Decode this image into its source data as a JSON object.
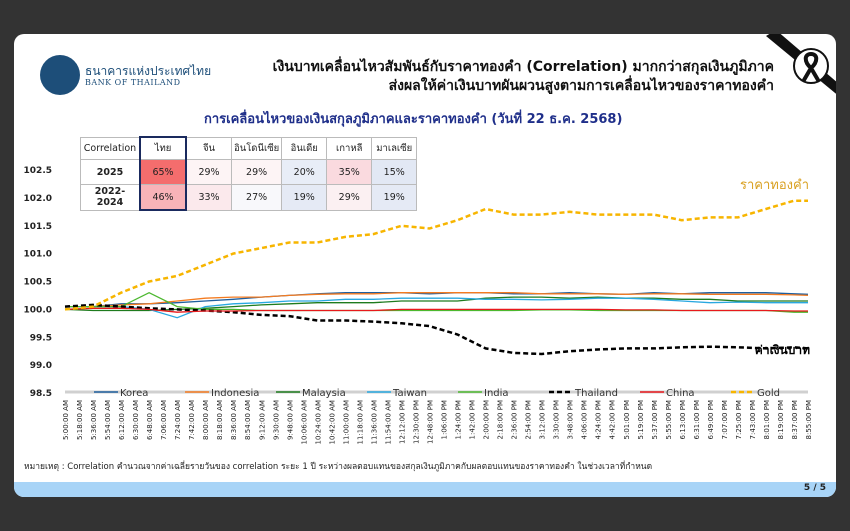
{
  "header": {
    "logo_th": "ธนาคารแห่งประเทศไทย",
    "logo_en": "BANK OF THAILAND",
    "title_line1": "เงินบาทเคลื่อนไหวสัมพันธ์กับราคาทองคำ (Correlation) มากกว่าสกุลเงินภูมิภาค",
    "title_line2": "ส่งผลให้ค่าเงินบาทผันผวนสูงตามการเคลื่อนไหวของราคาทองคำ",
    "mourning_icon": "black-ribbon"
  },
  "table": {
    "headers": [
      "Correlation",
      "ไทย",
      "จีน",
      "อินโดนีเซีย",
      "อินเดีย",
      "เกาหลี",
      "มาเลเซีย"
    ],
    "rows": [
      {
        "label": "2025",
        "values": [
          "65%",
          "29%",
          "29%",
          "20%",
          "35%",
          "15%"
        ],
        "colors": [
          "#f46d6d",
          "#fdf4f5",
          "#fdf4f5",
          "#e8edf7",
          "#fadadf",
          "#e2e8f4"
        ]
      },
      {
        "label": "2022-2024",
        "values": [
          "46%",
          "33%",
          "27%",
          "19%",
          "29%",
          "19%"
        ],
        "colors": [
          "#f8b3b8",
          "#fbe9ec",
          "#f8f8fb",
          "#e5eaf5",
          "#fbf0f2",
          "#e5eaf5"
        ]
      }
    ]
  },
  "chart_data": {
    "type": "line",
    "title": "การเคลื่อนไหวของเงินสกุลภูมิภาคและราคาทองคำ (วันที่ 22 ธ.ค. 2568)",
    "ylim": [
      98.5,
      102.5
    ],
    "yticks": [
      "98.5",
      "99.0",
      "99.5",
      "100.0",
      "100.5",
      "101.0",
      "101.5",
      "102.0",
      "102.5"
    ],
    "xtick_labels": [
      "5:00:00 AM",
      "5:18:00 AM",
      "5:36:00 AM",
      "5:54:00 AM",
      "6:12:00 AM",
      "6:30:00 AM",
      "6:48:00 AM",
      "7:06:00 AM",
      "7:24:00 AM",
      "7:42:00 AM",
      "8:00:00 AM",
      "8:18:00 AM",
      "8:36:00 AM",
      "8:54:00 AM",
      "9:12:00 AM",
      "9:30:00 AM",
      "9:48:00 AM",
      "10:06:00 AM",
      "10:24:00 AM",
      "10:42:00 AM",
      "11:00:00 AM",
      "11:18:00 AM",
      "11:36:00 AM",
      "11:54:00 AM",
      "12:12:00 PM",
      "12:30:00 PM",
      "12:48:00 PM",
      "1:06:00 PM",
      "1:24:00 PM",
      "1:42:00 PM",
      "2:00:00 PM",
      "2:18:00 PM",
      "2:36:00 PM",
      "2:54:00 PM",
      "3:12:00 PM",
      "3:30:00 PM",
      "3:48:00 PM",
      "4:06:00 PM",
      "4:24:00 PM",
      "4:42:00 PM",
      "5:01:00 PM",
      "5:19:00 PM",
      "5:37:00 PM",
      "5:55:00 PM",
      "6:13:00 PM",
      "6:31:00 PM",
      "6:49:00 PM",
      "7:07:00 PM",
      "7:25:00 PM",
      "7:43:00 PM",
      "8:01:00 PM",
      "8:19:00 PM",
      "8:37:00 PM",
      "8:55:00 PM"
    ],
    "x": [
      "5:00:00 AM",
      "5:36:00 AM",
      "6:12:00 AM",
      "6:48:00 AM",
      "7:24:00 AM",
      "8:00:00 AM",
      "8:36:00 AM",
      "9:12:00 AM",
      "9:48:00 AM",
      "10:24:00 AM",
      "11:00:00 AM",
      "11:36:00 AM",
      "12:12:00 PM",
      "12:48:00 PM",
      "1:24:00 PM",
      "2:00:00 PM",
      "2:36:00 PM",
      "3:12:00 PM",
      "3:48:00 PM",
      "4:24:00 PM",
      "5:01:00 PM",
      "5:37:00 PM",
      "6:13:00 PM",
      "6:49:00 PM",
      "7:25:00 PM",
      "8:01:00 PM",
      "8:37:00 PM",
      "8:55:00 PM"
    ],
    "legend_position": "bottom",
    "grid": false,
    "series": [
      {
        "name": "Korea",
        "color": "#1f5f9e",
        "dash": false,
        "values": [
          100.05,
          100.05,
          100.1,
          100.1,
          100.12,
          100.15,
          100.18,
          100.22,
          100.25,
          100.28,
          100.3,
          100.3,
          100.3,
          100.28,
          100.3,
          100.3,
          100.28,
          100.28,
          100.3,
          100.28,
          100.27,
          100.3,
          100.28,
          100.3,
          100.3,
          100.3,
          100.28,
          100.27
        ]
      },
      {
        "name": "Indonesia",
        "color": "#f47b20",
        "dash": false,
        "values": [
          100.05,
          100.05,
          100.08,
          100.1,
          100.15,
          100.2,
          100.22,
          100.22,
          100.25,
          100.27,
          100.28,
          100.28,
          100.3,
          100.3,
          100.3,
          100.3,
          100.3,
          100.28,
          100.28,
          100.28,
          100.27,
          100.28,
          100.28,
          100.27,
          100.27,
          100.27,
          100.26,
          100.25
        ]
      },
      {
        "name": "Malaysia",
        "color": "#1e7b1e",
        "dash": false,
        "values": [
          100.0,
          99.98,
          99.98,
          99.98,
          100.0,
          100.02,
          100.05,
          100.08,
          100.1,
          100.12,
          100.12,
          100.12,
          100.15,
          100.15,
          100.15,
          100.2,
          100.22,
          100.22,
          100.2,
          100.22,
          100.2,
          100.2,
          100.18,
          100.18,
          100.15,
          100.15,
          100.15,
          100.15
        ]
      },
      {
        "name": "Taiwan",
        "color": "#29a8e0",
        "dash": false,
        "values": [
          100.05,
          100.05,
          100.05,
          100.0,
          99.85,
          100.05,
          100.1,
          100.12,
          100.15,
          100.15,
          100.18,
          100.18,
          100.2,
          100.2,
          100.2,
          100.18,
          100.18,
          100.17,
          100.18,
          100.2,
          100.2,
          100.18,
          100.15,
          100.12,
          100.13,
          100.12,
          100.12,
          100.12
        ]
      },
      {
        "name": "India",
        "color": "#4cb82f",
        "dash": false,
        "values": [
          100.05,
          100.05,
          100.05,
          100.3,
          100.05,
          100.0,
          100.0,
          99.98,
          99.98,
          99.98,
          99.98,
          99.98,
          99.98,
          99.98,
          99.98,
          99.98,
          99.98,
          99.99,
          99.99,
          99.98,
          99.98,
          99.98,
          99.98,
          99.98,
          99.98,
          99.98,
          99.95,
          99.95
        ]
      },
      {
        "name": "Thailand",
        "color": "#000000",
        "dash": true,
        "values": [
          100.05,
          100.08,
          100.05,
          100.02,
          100.0,
          99.98,
          99.95,
          99.9,
          99.88,
          99.8,
          99.8,
          99.78,
          99.75,
          99.7,
          99.55,
          99.3,
          99.22,
          99.2,
          99.25,
          99.28,
          99.3,
          99.3,
          99.32,
          99.33,
          99.32,
          99.3,
          99.32,
          99.3
        ]
      },
      {
        "name": "China",
        "color": "#e8191c",
        "dash": false,
        "values": [
          100.0,
          100.02,
          100.02,
          100.0,
          99.95,
          99.97,
          99.97,
          99.98,
          99.98,
          99.98,
          99.98,
          99.98,
          100.0,
          100.0,
          100.0,
          100.0,
          100.0,
          100.0,
          100.0,
          100.0,
          99.99,
          99.99,
          99.98,
          99.98,
          99.98,
          99.98,
          99.97,
          99.97
        ]
      },
      {
        "name": "Gold",
        "color": "#f7b500",
        "dash": true,
        "values": [
          100.0,
          100.05,
          100.3,
          100.5,
          100.6,
          100.8,
          101.0,
          101.1,
          101.2,
          101.2,
          101.3,
          101.35,
          101.5,
          101.45,
          101.6,
          101.8,
          101.7,
          101.7,
          101.75,
          101.7,
          101.7,
          101.7,
          101.6,
          101.65,
          101.65,
          101.8,
          101.95,
          101.95
        ]
      }
    ],
    "annotations": [
      {
        "text": "ราคาทองคำ",
        "color": "#d9a020"
      },
      {
        "text": "ค่าเงินบาท",
        "color": "#000000"
      }
    ]
  },
  "footer": {
    "note": "หมายเหตุ : Correlation คำนวณจากค่าเฉลี่ยรายวันของ correlation ระยะ 1 ปี ระหว่างผลตอบแทนของสกุลเงินภูมิภาคกับผลตอบแทนของราคาทองคำ ในช่วงเวลาที่กำหนด",
    "page": "5 / 5"
  }
}
